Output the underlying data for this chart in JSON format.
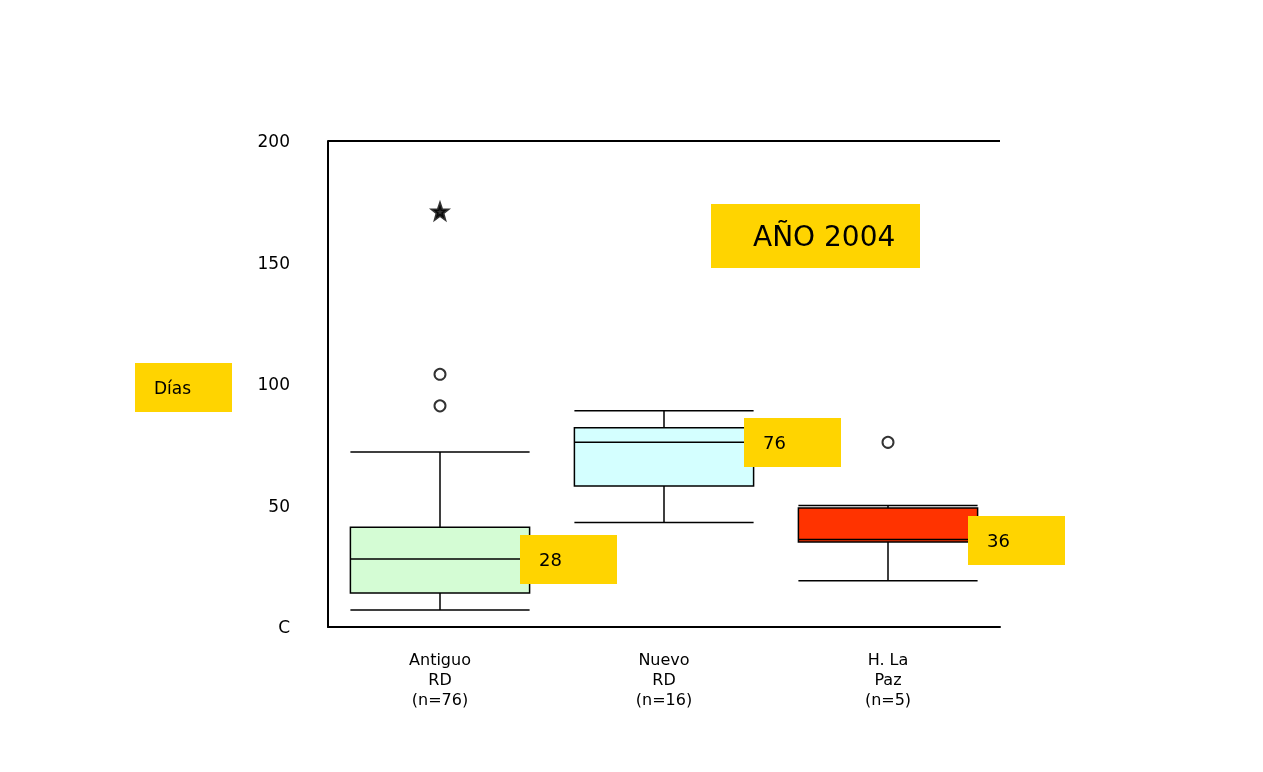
{
  "chart_data": {
    "type": "box",
    "categories": [
      "Antiguo\nRD\n(n=76)",
      "Nuevo\nRD\n(n=16)",
      "H. La\nPaz\n(n=5)"
    ],
    "colors": [
      "#d4fcd4",
      "#d4ffff",
      "#ff3300"
    ],
    "boxes": [
      {
        "low": 7,
        "q1": 14,
        "median": 28,
        "q3": 41,
        "high": 72,
        "outliers": [
          91,
          104
        ]
      },
      {
        "low": 43,
        "q1": 58,
        "median": 76,
        "q3": 82,
        "high": 89
      },
      {
        "low": 19,
        "q1": 35,
        "median": 36,
        "q3": 49,
        "high": 50,
        "outliers": [
          76
        ]
      }
    ],
    "series": [
      {
        "type": "scatter",
        "marker": "star",
        "color": "#000000",
        "x": [
          "Antiguo\nRD\n(n=76)"
        ],
        "values": [
          171
        ]
      }
    ],
    "ylim": [
      0,
      200
    ],
    "yticks": [
      {
        "value": 0,
        "label": "C"
      },
      50,
      100,
      150,
      200
    ],
    "grid": false,
    "annotations": [
      "Días",
      "AÑO 2004",
      "28",
      "76",
      "36"
    ]
  }
}
